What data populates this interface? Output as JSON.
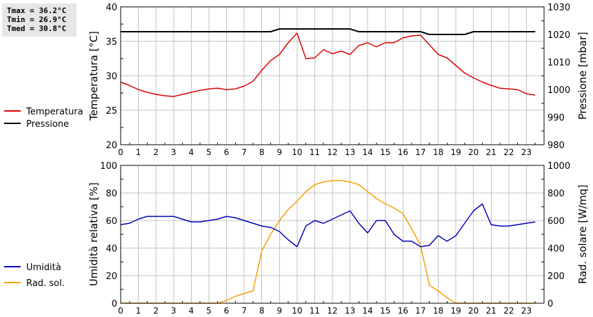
{
  "stats": {
    "tmax": "Tmax = 36.2°C",
    "tmin": "Tmin = 26.9°C",
    "tmed": "Tmed = 30.8°C"
  },
  "colors": {
    "temperature": "#dd0000",
    "pressure": "#000000",
    "humidity": "#0000bb",
    "solar": "#f5a000",
    "grid": "#c0c0c0"
  },
  "chart_data": [
    {
      "type": "line",
      "x": [
        0,
        0.5,
        1,
        1.5,
        2,
        2.5,
        3,
        3.5,
        4,
        4.5,
        5,
        5.5,
        6,
        6.5,
        7,
        7.5,
        8,
        8.5,
        9,
        9.5,
        10,
        10.5,
        11,
        11.5,
        12,
        12.5,
        13,
        13.5,
        14,
        14.5,
        15,
        15.5,
        16,
        16.5,
        17,
        17.5,
        18,
        18.5,
        19,
        19.5,
        20,
        20.5,
        21,
        21.5,
        22,
        22.5,
        23,
        23.5
      ],
      "xlim": [
        0,
        24
      ],
      "xticks": [
        "0",
        "1",
        "2",
        "3",
        "4",
        "5",
        "6",
        "7",
        "8",
        "9",
        "10",
        "11",
        "12",
        "13",
        "14",
        "15",
        "16",
        "17",
        "18",
        "19",
        "20",
        "21",
        "22",
        "23"
      ],
      "ylabel": "Temperatura [°C]",
      "ylim": [
        20,
        40
      ],
      "yticks": [
        "20",
        "25",
        "30",
        "35",
        "40"
      ],
      "y2label": "Pressione [mbar]",
      "y2lim": [
        980,
        1030
      ],
      "y2ticks": [
        "980",
        "990",
        "1000",
        "1010",
        "1020",
        "1030"
      ],
      "series": [
        {
          "name": "Temperatura",
          "axis": "left",
          "values": [
            29.1,
            28.6,
            28.0,
            27.6,
            27.3,
            27.1,
            27.0,
            27.3,
            27.6,
            27.9,
            28.1,
            28.2,
            28.0,
            28.1,
            28.5,
            29.2,
            30.8,
            32.2,
            33.1,
            34.8,
            36.2,
            32.5,
            32.6,
            33.8,
            33.2,
            33.6,
            33.1,
            34.4,
            34.8,
            34.2,
            34.8,
            34.8,
            35.5,
            35.8,
            35.9,
            34.5,
            33.1,
            32.6,
            31.5,
            30.4,
            29.7,
            29.1,
            28.6,
            28.2,
            28.1,
            28.0,
            27.4,
            27.2
          ]
        },
        {
          "name": "Pressione",
          "axis": "right",
          "values": [
            1021,
            1021,
            1021,
            1021,
            1021,
            1021,
            1021,
            1021,
            1021,
            1021,
            1021,
            1021,
            1021,
            1021,
            1021,
            1021,
            1021,
            1021,
            1022,
            1022,
            1022,
            1022,
            1022,
            1022,
            1022,
            1022,
            1022,
            1021,
            1021,
            1021,
            1021,
            1021,
            1021,
            1021,
            1021,
            1020,
            1020,
            1020,
            1020,
            1020,
            1021,
            1021,
            1021,
            1021,
            1021,
            1021,
            1021,
            1021
          ]
        }
      ]
    },
    {
      "type": "line",
      "x": [
        0,
        0.5,
        1,
        1.5,
        2,
        2.5,
        3,
        3.5,
        4,
        4.5,
        5,
        5.5,
        6,
        6.5,
        7,
        7.5,
        8,
        8.5,
        9,
        9.5,
        10,
        10.5,
        11,
        11.5,
        12,
        12.5,
        13,
        13.5,
        14,
        14.5,
        15,
        15.5,
        16,
        16.5,
        17,
        17.5,
        18,
        18.5,
        19,
        19.5,
        20,
        20.5,
        21,
        21.5,
        22,
        22.5,
        23,
        23.5
      ],
      "xlim": [
        0,
        24
      ],
      "xticks": [
        "0",
        "1",
        "2",
        "3",
        "4",
        "5",
        "6",
        "7",
        "8",
        "9",
        "10",
        "11",
        "12",
        "13",
        "14",
        "15",
        "16",
        "17",
        "18",
        "19",
        "20",
        "21",
        "22",
        "23"
      ],
      "ylabel": "Umidità relativa [%]",
      "ylim": [
        0,
        100
      ],
      "yticks": [
        "0",
        "20",
        "40",
        "60",
        "80",
        "100"
      ],
      "y2label": "Rad. solare [W/mq]",
      "y2lim": [
        0,
        1000
      ],
      "y2ticks": [
        "0",
        "200",
        "400",
        "600",
        "800",
        "1000"
      ],
      "series": [
        {
          "name": "Umidità",
          "axis": "left",
          "values": [
            57,
            58,
            61,
            63,
            63,
            63,
            63,
            61,
            59,
            59,
            60,
            61,
            63,
            62,
            60,
            58,
            56,
            55,
            52,
            46,
            41,
            56,
            60,
            58,
            61,
            64,
            67,
            58,
            51,
            60,
            60,
            50,
            45,
            45,
            41,
            42,
            49,
            45,
            49,
            58,
            67,
            72,
            57,
            56,
            56,
            57,
            58,
            59
          ]
        },
        {
          "name": "Rad. sol.",
          "axis": "right",
          "values": [
            0,
            0,
            0,
            0,
            0,
            0,
            0,
            0,
            0,
            0,
            0,
            0,
            20,
            50,
            70,
            90,
            380,
            500,
            600,
            680,
            740,
            810,
            860,
            880,
            890,
            890,
            880,
            860,
            810,
            760,
            720,
            690,
            650,
            540,
            420,
            130,
            90,
            40,
            0,
            0,
            0,
            0,
            0,
            0,
            0,
            0,
            0,
            0
          ]
        }
      ]
    }
  ],
  "legends": {
    "top": [
      "Temperatura",
      "Pressione"
    ],
    "bottom": [
      "Umidità",
      "Rad. sol."
    ]
  }
}
